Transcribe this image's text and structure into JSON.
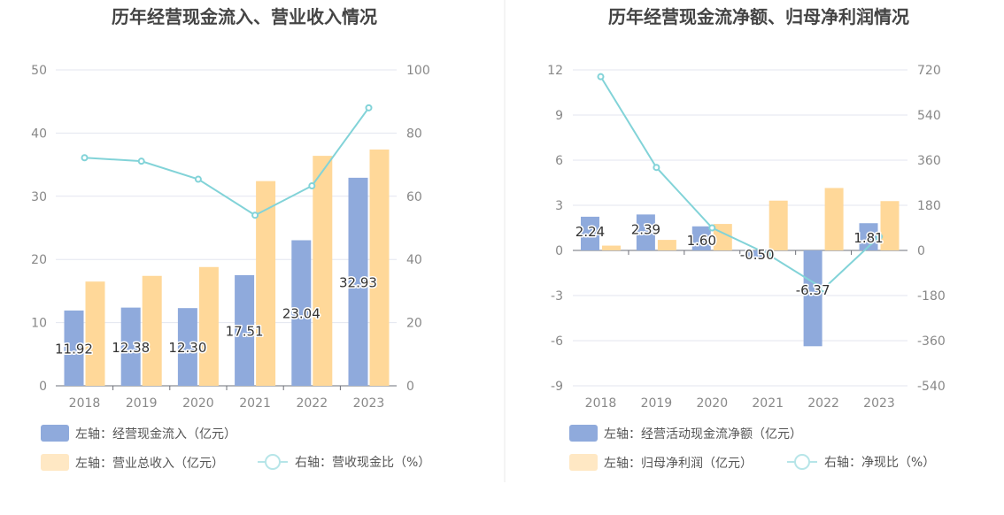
{
  "colors": {
    "bar_blue": "#8faadc",
    "bar_orange": "#ffd899",
    "line": "#82d3d8",
    "grid": "#e3e6ef",
    "divider": "#e8e8e8"
  },
  "chart_data": [
    {
      "type": "bar",
      "title": "历年经营现金流入、营业收入情况",
      "categories": [
        "2018",
        "2019",
        "2020",
        "2021",
        "2022",
        "2023"
      ],
      "ylim": [
        0,
        50
      ],
      "y_ticks": [
        "0",
        "10",
        "20",
        "30",
        "40",
        "50"
      ],
      "y2lim": [
        0,
        100
      ],
      "y2_ticks": [
        "0",
        "20",
        "40",
        "60",
        "80",
        "100"
      ],
      "series": [
        {
          "name": "左轴：经营现金流入（亿元）",
          "type": "bar",
          "axis": "left",
          "values": [
            11.92,
            12.38,
            12.3,
            17.51,
            23.04,
            32.93
          ],
          "labels": [
            "11.92",
            "12.38",
            "12.30",
            "17.51",
            "23.04",
            "32.93"
          ]
        },
        {
          "name": "左轴：营业总收入（亿元）",
          "type": "bar",
          "axis": "left",
          "values": [
            16.5,
            17.4,
            18.8,
            32.4,
            36.4,
            37.4
          ]
        },
        {
          "name": "右轴：营收现金比（%）",
          "type": "line",
          "axis": "right",
          "values": [
            72.2,
            71.1,
            65.4,
            54.0,
            63.3,
            88.0
          ]
        }
      ],
      "grid": true,
      "legend_position": "bottom"
    },
    {
      "type": "bar",
      "title": "历年经营现金流净额、归母净利润情况",
      "categories": [
        "2018",
        "2019",
        "2020",
        "2021",
        "2022",
        "2023"
      ],
      "ylim": [
        -9,
        12
      ],
      "y_ticks": [
        "-9",
        "-6",
        "-3",
        "0",
        "3",
        "6",
        "9",
        "12"
      ],
      "y2lim": [
        -540,
        720
      ],
      "y2_ticks": [
        "-540",
        "-360",
        "-180",
        "0",
        "180",
        "360",
        "540",
        "720"
      ],
      "series": [
        {
          "name": "左轴：经营活动现金流净额（亿元）",
          "type": "bar",
          "axis": "left",
          "values": [
            2.24,
            2.39,
            1.6,
            -0.5,
            -6.37,
            1.81
          ],
          "labels": [
            "2.24",
            "2.39",
            "1.60",
            "-0.50",
            "-6.37",
            "1.81"
          ]
        },
        {
          "name": "左轴：归母净利润（亿元）",
          "type": "bar",
          "axis": "left",
          "values": [
            0.32,
            0.7,
            1.76,
            3.31,
            4.15,
            3.28
          ]
        },
        {
          "name": "右轴：净现比（%）",
          "type": "line",
          "axis": "right",
          "values": [
            693,
            331,
            90,
            -15,
            -153,
            55
          ]
        }
      ],
      "grid": true,
      "legend_position": "bottom"
    }
  ]
}
